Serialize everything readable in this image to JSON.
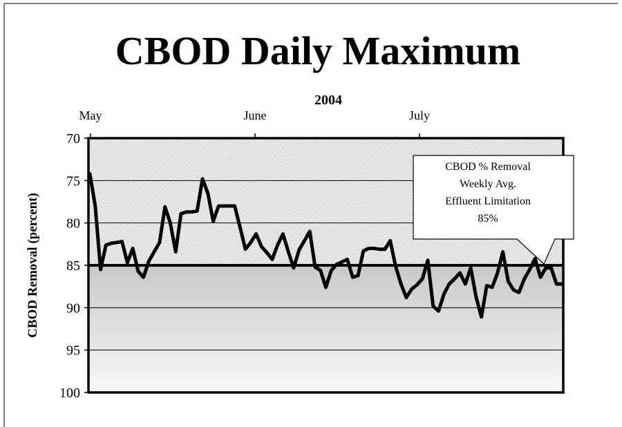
{
  "chart_data": {
    "type": "line",
    "title": "CBOD Daily Maximum",
    "subtitle": "2004",
    "xlabel": "",
    "ylabel": "CBOD Removal (percent)",
    "x_tick_labels": [
      "May",
      "June",
      "July"
    ],
    "y_ticks": [
      70,
      75,
      80,
      85,
      90,
      95,
      100
    ],
    "ylim": [
      70,
      100
    ],
    "y_inverted": true,
    "grid": true,
    "limit_value": 85,
    "callout": {
      "lines": [
        "CBOD % Removal",
        "Weekly Avg.",
        "Effluent Limitation",
        "85%"
      ]
    },
    "series": [
      {
        "values": [
          74.2,
          78.0,
          85.5,
          82.6,
          82.4,
          82.3,
          82.2,
          84.7,
          83.0,
          85.7,
          86.4,
          84.5,
          83.4,
          82.3,
          78.1,
          80.0,
          83.4,
          78.9,
          78.7,
          78.7,
          78.6,
          74.8,
          76.5,
          79.8,
          78.0,
          78.0,
          78.0,
          78.0,
          80.5,
          83.1,
          82.3,
          81.3,
          82.8,
          83.5,
          84.3,
          82.6,
          81.3,
          83.4,
          85.3,
          83.2,
          82.1,
          81.0,
          85.2,
          85.6,
          87.6,
          85.6,
          84.9,
          84.6,
          84.3,
          86.4,
          86.2,
          83.3,
          83.0,
          83.0,
          83.1,
          83.1,
          82.1,
          85.1,
          87.2,
          88.8,
          87.8,
          87.3,
          86.6,
          84.4,
          89.8,
          90.4,
          88.4,
          87.2,
          86.6,
          85.9,
          87.2,
          85.3,
          88.7,
          91.1,
          87.4,
          87.6,
          85.9,
          83.4,
          86.9,
          87.9,
          88.2,
          86.6,
          85.5,
          84.2,
          86.4,
          85.3,
          85.3,
          87.2,
          87.2
        ]
      }
    ]
  }
}
